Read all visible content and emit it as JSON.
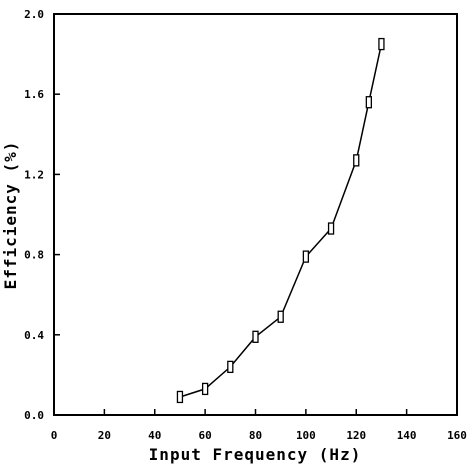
{
  "chart_data": {
    "type": "line",
    "title": "",
    "xlabel": "Input Frequency (Hz)",
    "ylabel": "Efficiency (%)",
    "xlim": [
      0,
      160
    ],
    "ylim": [
      0,
      2.0
    ],
    "x_ticks": [
      0,
      20,
      40,
      60,
      80,
      100,
      120,
      140,
      160
    ],
    "y_ticks": [
      0.0,
      0.4,
      0.8,
      1.2,
      1.6,
      2.0
    ],
    "x_tick_labels": [
      "0",
      "20",
      "40",
      "60",
      "80",
      "100",
      "120",
      "140",
      "160"
    ],
    "y_tick_labels": [
      "0.0",
      "0.4",
      "0.8",
      "1.2",
      "1.6",
      "2.0"
    ],
    "grid": false,
    "marker": "rectangle",
    "series": [
      {
        "x": [
          50,
          60,
          70,
          80,
          90,
          100,
          110,
          120,
          125,
          130
        ],
        "y": [
          0.09,
          0.13,
          0.24,
          0.39,
          0.49,
          0.79,
          0.93,
          1.27,
          1.56,
          1.85
        ]
      }
    ]
  }
}
